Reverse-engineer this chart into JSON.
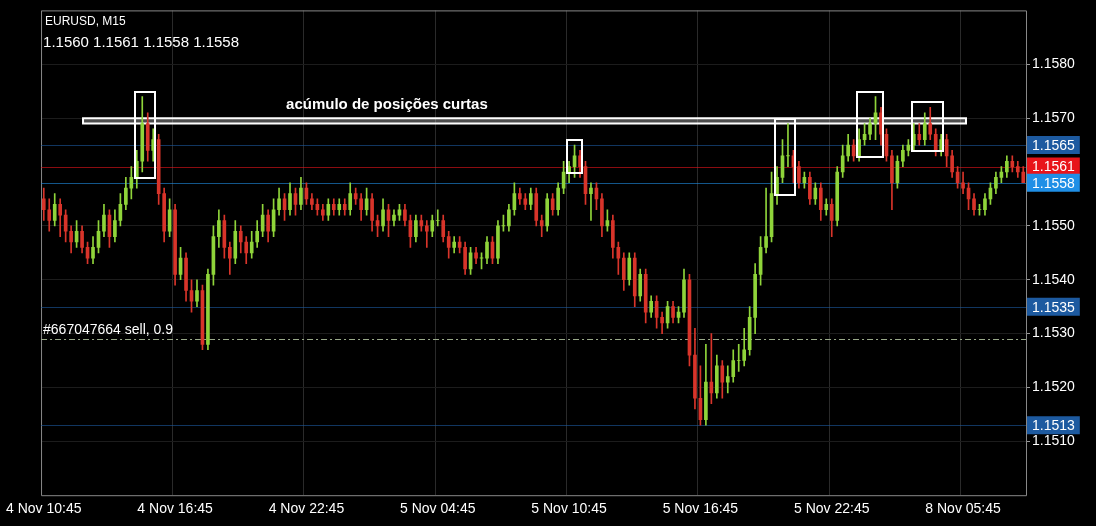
{
  "chart_data": {
    "type": "candlestick",
    "title": "EURUSD, M15",
    "subtitle": "1.1560 1.1561 1.1558 1.1558",
    "categories": [
      "4 Nov 10:45",
      null,
      null,
      null,
      null,
      null,
      null,
      null,
      null,
      null,
      null,
      null,
      null,
      null,
      null,
      null,
      null,
      null,
      null,
      null,
      null,
      null,
      null,
      null,
      "4 Nov 16:45",
      null,
      null,
      null,
      null,
      null,
      null,
      null,
      null,
      null,
      null,
      null,
      null,
      null,
      null,
      null,
      null,
      null,
      null,
      null,
      null,
      null,
      null,
      null,
      "4 Nov 22:45",
      null,
      null,
      null,
      null,
      null,
      null,
      null,
      null,
      null,
      null,
      null,
      null,
      null,
      null,
      null,
      null,
      null,
      null,
      null,
      null,
      null,
      null,
      null,
      "5 Nov 04:45",
      null,
      null,
      null,
      null,
      null,
      null,
      null,
      null,
      null,
      null,
      null,
      null,
      null,
      null,
      null,
      null,
      null,
      null,
      null,
      null,
      null,
      null,
      null,
      "5 Nov 10:45",
      null,
      null,
      null,
      null,
      null,
      null,
      null,
      null,
      null,
      null,
      null,
      null,
      null,
      null,
      null,
      null,
      null,
      null,
      null,
      null,
      null,
      null,
      null,
      "5 Nov 16:45",
      null,
      null,
      null,
      null,
      null,
      null,
      null,
      null,
      null,
      null,
      null,
      null,
      null,
      null,
      null,
      null,
      null,
      null,
      null,
      null,
      null,
      null,
      null,
      "5 Nov 22:45",
      null,
      null,
      null,
      null,
      null,
      null,
      null,
      null,
      null,
      null,
      null,
      null,
      null,
      null,
      null,
      null,
      null,
      null,
      null,
      null,
      null,
      null,
      null,
      "8 Nov 05:45",
      null,
      null,
      null,
      null,
      null,
      null,
      null,
      null,
      null,
      null,
      null
    ],
    "ohlc": [
      [
        1.1555,
        1.1557,
        1.1551,
        1.1553
      ],
      [
        1.1553,
        1.1555,
        1.1549,
        1.1551
      ],
      [
        1.1551,
        1.1556,
        1.155,
        1.1554
      ],
      [
        1.1554,
        1.1555,
        1.1548,
        1.1552
      ],
      [
        1.1552,
        1.1553,
        1.1547,
        1.1549
      ],
      [
        1.1549,
        1.155,
        1.1545,
        1.1547
      ],
      [
        1.1547,
        1.1551,
        1.1546,
        1.1549
      ],
      [
        1.1549,
        1.155,
        1.1545,
        1.1546
      ],
      [
        1.1546,
        1.1547,
        1.1543,
        1.1544
      ],
      [
        1.1544,
        1.1548,
        1.1543,
        1.1546
      ],
      [
        1.1546,
        1.1551,
        1.1545,
        1.1549
      ],
      [
        1.1549,
        1.1554,
        1.1548,
        1.1552
      ],
      [
        1.1552,
        1.1553,
        1.1546,
        1.1548
      ],
      [
        1.1548,
        1.1553,
        1.1547,
        1.1551
      ],
      [
        1.1551,
        1.1556,
        1.155,
        1.1554
      ],
      [
        1.1554,
        1.1559,
        1.1553,
        1.1557
      ],
      [
        1.1557,
        1.1561,
        1.1555,
        1.1559
      ],
      [
        1.1559,
        1.1564,
        1.1557,
        1.1562
      ],
      [
        1.1562,
        1.1574,
        1.156,
        1.1569
      ],
      [
        1.1569,
        1.1571,
        1.1562,
        1.1564
      ],
      [
        1.1564,
        1.1568,
        1.1562,
        1.1566
      ],
      [
        1.1566,
        1.1567,
        1.1554,
        1.1556
      ],
      [
        1.1556,
        1.1557,
        1.1547,
        1.1549
      ],
      [
        1.1549,
        1.1555,
        1.1548,
        1.1553
      ],
      [
        1.1553,
        1.1554,
        1.1539,
        1.1541
      ],
      [
        1.1541,
        1.1546,
        1.154,
        1.1544
      ],
      [
        1.1544,
        1.1545,
        1.1536,
        1.1538
      ],
      [
        1.1538,
        1.154,
        1.1534,
        1.1536
      ],
      [
        1.1536,
        1.154,
        1.1535,
        1.1538
      ],
      [
        1.1538,
        1.1539,
        1.1527,
        1.1528
      ],
      [
        1.1528,
        1.1542,
        1.1527,
        1.1541
      ],
      [
        1.1541,
        1.155,
        1.1539,
        1.1548
      ],
      [
        1.1548,
        1.1553,
        1.1546,
        1.1551
      ],
      [
        1.1551,
        1.1552,
        1.1544,
        1.1546
      ],
      [
        1.1546,
        1.1547,
        1.1541,
        1.1544
      ],
      [
        1.1544,
        1.1551,
        1.1543,
        1.1549
      ],
      [
        1.1549,
        1.155,
        1.1545,
        1.1547
      ],
      [
        1.1547,
        1.1548,
        1.1543,
        1.1545
      ],
      [
        1.1545,
        1.1549,
        1.1544,
        1.1547
      ],
      [
        1.1547,
        1.1551,
        1.1546,
        1.1549
      ],
      [
        1.1549,
        1.1554,
        1.1548,
        1.1552
      ],
      [
        1.1552,
        1.1553,
        1.1547,
        1.1549
      ],
      [
        1.1549,
        1.1555,
        1.1548,
        1.1553
      ],
      [
        1.1553,
        1.1557,
        1.1552,
        1.1555
      ],
      [
        1.1555,
        1.1556,
        1.1551,
        1.1553
      ],
      [
        1.1553,
        1.1558,
        1.1552,
        1.1556
      ],
      [
        1.1556,
        1.1557,
        1.1552,
        1.1554
      ],
      [
        1.1554,
        1.1559,
        1.1553,
        1.1557
      ],
      [
        1.1557,
        1.1558,
        1.1554,
        1.1555
      ],
      [
        1.1555,
        1.1556,
        1.1553,
        1.1554
      ],
      [
        1.1554,
        1.1555,
        1.1552,
        1.1553
      ],
      [
        1.1553,
        1.1554,
        1.1551,
        1.1552
      ],
      [
        1.1552,
        1.1555,
        1.1551,
        1.1554
      ],
      [
        1.1554,
        1.1555,
        1.1552,
        1.1553
      ],
      [
        1.1553,
        1.1555,
        1.1552,
        1.1554
      ],
      [
        1.1554,
        1.1555,
        1.1552,
        1.1553
      ],
      [
        1.1553,
        1.1558,
        1.1552,
        1.1556
      ],
      [
        1.1556,
        1.1557,
        1.1554,
        1.1555
      ],
      [
        1.1555,
        1.1556,
        1.1551,
        1.1553
      ],
      [
        1.1553,
        1.1557,
        1.1552,
        1.1555
      ],
      [
        1.1555,
        1.1556,
        1.1549,
        1.1551
      ],
      [
        1.1551,
        1.1552,
        1.1548,
        1.155
      ],
      [
        1.155,
        1.1555,
        1.1549,
        1.1553
      ],
      [
        1.1553,
        1.1554,
        1.1548,
        1.1551
      ],
      [
        1.1551,
        1.1553,
        1.155,
        1.1552
      ],
      [
        1.1552,
        1.1554,
        1.1551,
        1.1553
      ],
      [
        1.1553,
        1.1554,
        1.155,
        1.1551
      ],
      [
        1.1551,
        1.1552,
        1.1546,
        1.1548
      ],
      [
        1.1548,
        1.1552,
        1.1547,
        1.1551
      ],
      [
        1.1551,
        1.1552,
        1.1549,
        1.155
      ],
      [
        1.155,
        1.1551,
        1.1546,
        1.1549
      ],
      [
        1.1549,
        1.1552,
        1.1548,
        1.1551
      ],
      [
        1.1551,
        1.1553,
        1.155,
        1.1551
      ],
      [
        1.1551,
        1.1552,
        1.1547,
        1.1548
      ],
      [
        1.1548,
        1.1549,
        1.1544,
        1.1546
      ],
      [
        1.1546,
        1.1548,
        1.1545,
        1.1547
      ],
      [
        1.1547,
        1.1548,
        1.1545,
        1.1546
      ],
      [
        1.1546,
        1.1547,
        1.1541,
        1.1542
      ],
      [
        1.1542,
        1.1546,
        1.1541,
        1.1545
      ],
      [
        1.1545,
        1.1546,
        1.1543,
        1.1544
      ],
      [
        1.1544,
        1.1545,
        1.1542,
        1.1544
      ],
      [
        1.1544,
        1.1548,
        1.1543,
        1.1547
      ],
      [
        1.1547,
        1.1548,
        1.1543,
        1.1544
      ],
      [
        1.1544,
        1.1551,
        1.1543,
        1.155
      ],
      [
        1.155,
        1.1552,
        1.1549,
        1.155
      ],
      [
        1.155,
        1.1554,
        1.1549,
        1.1553
      ],
      [
        1.1553,
        1.1558,
        1.1552,
        1.1556
      ],
      [
        1.1556,
        1.1557,
        1.1554,
        1.1555
      ],
      [
        1.1555,
        1.1556,
        1.1553,
        1.1554
      ],
      [
        1.1554,
        1.1557,
        1.1553,
        1.1556
      ],
      [
        1.1556,
        1.1557,
        1.155,
        1.1551
      ],
      [
        1.1551,
        1.1552,
        1.1548,
        1.155
      ],
      [
        1.155,
        1.1556,
        1.1549,
        1.1555
      ],
      [
        1.1555,
        1.1556,
        1.1552,
        1.1553
      ],
      [
        1.1553,
        1.1558,
        1.1552,
        1.1557
      ],
      [
        1.1557,
        1.1562,
        1.1556,
        1.156
      ],
      [
        1.156,
        1.1562,
        1.1558,
        1.1561
      ],
      [
        1.1561,
        1.1565,
        1.1559,
        1.1563
      ],
      [
        1.1563,
        1.1564,
        1.1559,
        1.1561
      ],
      [
        1.1561,
        1.1562,
        1.1554,
        1.1556
      ],
      [
        1.1556,
        1.1558,
        1.1551,
        1.1557
      ],
      [
        1.1557,
        1.1558,
        1.1553,
        1.1555
      ],
      [
        1.1555,
        1.1556,
        1.1548,
        1.155
      ],
      [
        1.155,
        1.1553,
        1.1549,
        1.1551
      ],
      [
        1.1551,
        1.1552,
        1.1544,
        1.1546
      ],
      [
        1.1546,
        1.1547,
        1.1541,
        1.1544
      ],
      [
        1.1544,
        1.1545,
        1.1538,
        1.154
      ],
      [
        1.154,
        1.1545,
        1.1539,
        1.1544
      ],
      [
        1.1544,
        1.1545,
        1.1535,
        1.1537
      ],
      [
        1.1537,
        1.1542,
        1.1536,
        1.1541
      ],
      [
        1.1541,
        1.1542,
        1.1532,
        1.1534
      ],
      [
        1.1534,
        1.1537,
        1.1533,
        1.1536
      ],
      [
        1.1536,
        1.1537,
        1.1531,
        1.1533
      ],
      [
        1.1533,
        1.1534,
        1.153,
        1.1532
      ],
      [
        1.1532,
        1.1536,
        1.1531,
        1.1535
      ],
      [
        1.1535,
        1.1536,
        1.1532,
        1.1533
      ],
      [
        1.1533,
        1.1535,
        1.1532,
        1.1534
      ],
      [
        1.1534,
        1.1542,
        1.1533,
        1.154
      ],
      [
        1.154,
        1.1541,
        1.1524,
        1.1526
      ],
      [
        1.1526,
        1.1531,
        1.1516,
        1.1518
      ],
      [
        1.1518,
        1.1524,
        1.1513,
        1.1514
      ],
      [
        1.1514,
        1.1528,
        1.1513,
        1.1521
      ],
      [
        1.1521,
        1.153,
        1.1517,
        1.1519
      ],
      [
        1.1519,
        1.1526,
        1.1518,
        1.1524
      ],
      [
        1.1524,
        1.1525,
        1.1518,
        1.1521
      ],
      [
        1.1521,
        1.1524,
        1.1519,
        1.1522
      ],
      [
        1.1522,
        1.1527,
        1.1521,
        1.1525
      ],
      [
        1.1525,
        1.1528,
        1.1523,
        1.1525
      ],
      [
        1.1525,
        1.1531,
        1.1524,
        1.1527
      ],
      [
        1.1527,
        1.1535,
        1.1526,
        1.1533
      ],
      [
        1.1533,
        1.1543,
        1.153,
        1.1541
      ],
      [
        1.1541,
        1.1548,
        1.1539,
        1.1546
      ],
      [
        1.1546,
        1.1557,
        1.1545,
        1.1548
      ],
      [
        1.1548,
        1.156,
        1.1547,
        1.1556
      ],
      [
        1.1556,
        1.1561,
        1.1554,
        1.1559
      ],
      [
        1.1559,
        1.1566,
        1.1558,
        1.1563
      ],
      [
        1.1563,
        1.1569,
        1.1561,
        1.1563
      ],
      [
        1.1563,
        1.1564,
        1.1558,
        1.1561
      ],
      [
        1.1561,
        1.1562,
        1.1557,
        1.1558
      ],
      [
        1.1558,
        1.156,
        1.1557,
        1.1559
      ],
      [
        1.1559,
        1.156,
        1.1554,
        1.1555
      ],
      [
        1.1555,
        1.1558,
        1.1554,
        1.1557
      ],
      [
        1.1557,
        1.1558,
        1.1551,
        1.1553
      ],
      [
        1.1553,
        1.1555,
        1.1552,
        1.1554
      ],
      [
        1.1554,
        1.1555,
        1.1548,
        1.1551
      ],
      [
        1.1551,
        1.1561,
        1.155,
        1.156
      ],
      [
        1.156,
        1.1565,
        1.1559,
        1.1563
      ],
      [
        1.1563,
        1.1567,
        1.1562,
        1.1565
      ],
      [
        1.1565,
        1.1566,
        1.1562,
        1.1563
      ],
      [
        1.1563,
        1.1568,
        1.1562,
        1.1566
      ],
      [
        1.1566,
        1.1569,
        1.1565,
        1.1567
      ],
      [
        1.1567,
        1.157,
        1.1566,
        1.1569
      ],
      [
        1.1569,
        1.1574,
        1.1566,
        1.1571
      ],
      [
        1.1571,
        1.1572,
        1.1565,
        1.1567
      ],
      [
        1.1567,
        1.1568,
        1.1562,
        1.1563
      ],
      [
        1.1563,
        1.1564,
        1.1553,
        1.1558
      ],
      [
        1.1558,
        1.1563,
        1.1557,
        1.1562
      ],
      [
        1.1562,
        1.1565,
        1.1561,
        1.1564
      ],
      [
        1.1564,
        1.1566,
        1.1563,
        1.1565
      ],
      [
        1.1565,
        1.1569,
        1.1564,
        1.1567
      ],
      [
        1.1567,
        1.1569,
        1.1565,
        1.1566
      ],
      [
        1.1566,
        1.1571,
        1.1565,
        1.1569
      ],
      [
        1.1569,
        1.1572,
        1.1566,
        1.1567
      ],
      [
        1.1567,
        1.1568,
        1.1563,
        1.1564
      ],
      [
        1.1564,
        1.1567,
        1.1563,
        1.1566
      ],
      [
        1.1566,
        1.1567,
        1.1561,
        1.1563
      ],
      [
        1.1563,
        1.1564,
        1.1559,
        1.156
      ],
      [
        1.156,
        1.1561,
        1.1557,
        1.1558
      ],
      [
        1.1558,
        1.156,
        1.1556,
        1.1557
      ],
      [
        1.1557,
        1.1558,
        1.1553,
        1.1555
      ],
      [
        1.1555,
        1.1556,
        1.1552,
        1.1553
      ],
      [
        1.1553,
        1.1554,
        1.1552,
        1.1553
      ],
      [
        1.1553,
        1.1556,
        1.1552,
        1.1555
      ],
      [
        1.1555,
        1.1558,
        1.1554,
        1.1557
      ],
      [
        1.1557,
        1.156,
        1.1556,
        1.1559
      ],
      [
        1.1559,
        1.1561,
        1.1558,
        1.156
      ],
      [
        1.156,
        1.1563,
        1.1559,
        1.1562
      ],
      [
        1.1562,
        1.1563,
        1.156,
        1.1561
      ],
      [
        1.1561,
        1.1562,
        1.1559,
        1.156
      ],
      [
        1.156,
        1.1561,
        1.1558,
        1.1558
      ]
    ],
    "ylim": [
      1.15,
      1.159
    ],
    "yticks": [
      {
        "value": 1.151,
        "label": "1.1510"
      },
      {
        "value": 1.152,
        "label": "1.1520"
      },
      {
        "value": 1.153,
        "label": "1.1530"
      },
      {
        "value": 1.154,
        "label": "1.1540"
      },
      {
        "value": 1.155,
        "label": "1.1550"
      },
      {
        "value": 1.157,
        "label": "1.1570"
      },
      {
        "value": 1.158,
        "label": "1.1580"
      }
    ],
    "grid": true,
    "legend": false,
    "ref_lines": [
      {
        "axis": "y",
        "value": 1.1565,
        "label": "1.1565",
        "color": "#1d5aa0"
      },
      {
        "axis": "y",
        "value": 1.1561,
        "label": "1.1561",
        "color": "#e8141a"
      },
      {
        "axis": "y",
        "value": 1.1558,
        "label": "1.1558",
        "color": "#1f8fe6"
      },
      {
        "axis": "y",
        "value": 1.1535,
        "label": "1.1535",
        "color": "#1d5aa0"
      },
      {
        "axis": "y",
        "value": 1.1513,
        "label": "1.1513",
        "color": "#1d5aa0"
      },
      {
        "axis": "y",
        "value": 1.1529,
        "label": "#667047664 sell, 0.9",
        "color": "#9aaa8a",
        "line_style": "dashed"
      }
    ],
    "bands": [
      {
        "axis": "y",
        "from": 1.1569,
        "to": 1.157,
        "label": "acúmulo de posições curtas",
        "color": "#ffffff"
      }
    ]
  }
}
